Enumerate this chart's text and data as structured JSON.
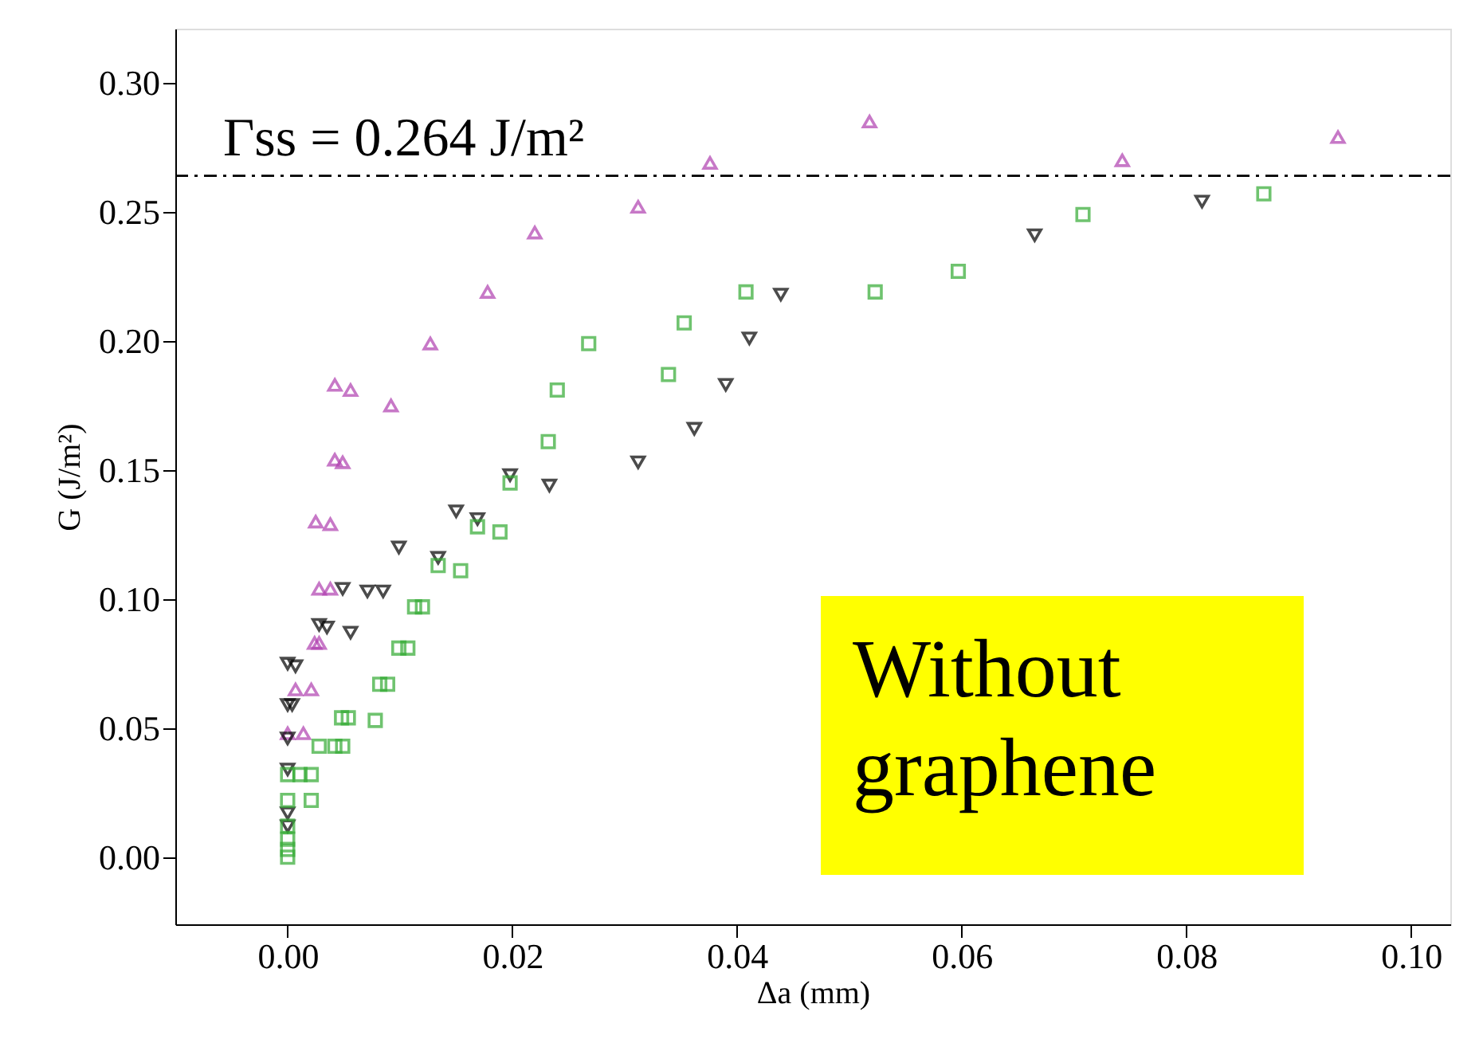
{
  "chart_data": {
    "type": "scatter",
    "xlabel": "Δa (mm)",
    "ylabel": "G (J/m²)",
    "xlim": [
      -0.01,
      0.1035
    ],
    "ylim": [
      -0.026,
      0.321
    ],
    "xticks": [
      {
        "value": 0,
        "label": "0.00"
      },
      {
        "value": 0.02,
        "label": "0.02"
      },
      {
        "value": 0.04,
        "label": "0.04"
      },
      {
        "value": 0.06,
        "label": "0.06"
      },
      {
        "value": 0.08,
        "label": "0.08"
      },
      {
        "value": 0.1,
        "label": "0.10"
      }
    ],
    "yticks": [
      {
        "value": 0,
        "label": "0.00"
      },
      {
        "value": 0.05,
        "label": "0.05"
      },
      {
        "value": 0.1,
        "label": "0.10"
      },
      {
        "value": 0.15,
        "label": "0.15"
      },
      {
        "value": 0.2,
        "label": "0.20"
      },
      {
        "value": 0.25,
        "label": "0.25"
      },
      {
        "value": 0.3,
        "label": "0.30"
      }
    ],
    "grid": false,
    "ref_lines": [
      {
        "axis": "y",
        "value": 0.264,
        "label": "Γss = 0.264 J/m²",
        "line_style": "dashed",
        "color": "#000000"
      }
    ],
    "annotations": [
      "Without graphene"
    ],
    "series": [
      {
        "color": "#b040b0",
        "marker": "triangle",
        "x": [
          0,
          0.0014,
          0.0007,
          0.0021,
          0.0024,
          0.0028,
          0.0028,
          0.0038,
          0.0025,
          0.0038,
          0.0042,
          0.0049,
          0.0042,
          0.0056,
          0.0092,
          0.0127,
          0.0178,
          0.022,
          0.0312,
          0.0376,
          0.0518,
          0.0743,
          0.0935
        ],
        "values": [
          0.048,
          0.048,
          0.065,
          0.065,
          0.083,
          0.083,
          0.104,
          0.104,
          0.13,
          0.129,
          0.154,
          0.153,
          0.183,
          0.181,
          0.175,
          0.199,
          0.219,
          0.242,
          0.252,
          0.269,
          0.285,
          0.27,
          0.279
        ]
      },
      {
        "color": "#000000",
        "marker": "triangle-down",
        "x": [
          0,
          0.0007,
          0,
          0.0004,
          0,
          0,
          0,
          0,
          0.0028,
          0.0035,
          0.0056,
          0.0049,
          0.0071,
          0.0085,
          0.0099,
          0.0134,
          0.015,
          0.0169,
          0.0198,
          0.0233,
          0.0312,
          0.0362,
          0.039,
          0.0411,
          0.0439,
          0.0665,
          0.0814
        ],
        "values": [
          0.075,
          0.074,
          0.059,
          0.059,
          0.046,
          0.034,
          0.017,
          0.012,
          0.09,
          0.089,
          0.087,
          0.104,
          0.103,
          0.103,
          0.12,
          0.116,
          0.134,
          0.131,
          0.148,
          0.144,
          0.153,
          0.166,
          0.183,
          0.201,
          0.218,
          0.241,
          0.254
        ]
      },
      {
        "color": "#33aa33",
        "marker": "square",
        "x": [
          0,
          0,
          0,
          0,
          0,
          0.0021,
          0,
          0.0011,
          0.0021,
          0.0028,
          0.0042,
          0.0049,
          0.0048,
          0.0054,
          0.0078,
          0.0082,
          0.0089,
          0.0099,
          0.0107,
          0.0113,
          0.012,
          0.0134,
          0.0154,
          0.0169,
          0.0189,
          0.0198,
          0.0232,
          0.024,
          0.0268,
          0.0339,
          0.0353,
          0.0408,
          0.0523,
          0.0597,
          0.0708,
          0.0869
        ],
        "values": [
          0,
          0.003,
          0.007,
          0.012,
          0.022,
          0.022,
          0.032,
          0.032,
          0.032,
          0.043,
          0.043,
          0.043,
          0.054,
          0.054,
          0.053,
          0.067,
          0.067,
          0.081,
          0.081,
          0.097,
          0.097,
          0.113,
          0.111,
          0.128,
          0.126,
          0.145,
          0.161,
          0.181,
          0.199,
          0.187,
          0.207,
          0.219,
          0.219,
          0.227,
          0.249,
          0.257
        ]
      }
    ]
  }
}
